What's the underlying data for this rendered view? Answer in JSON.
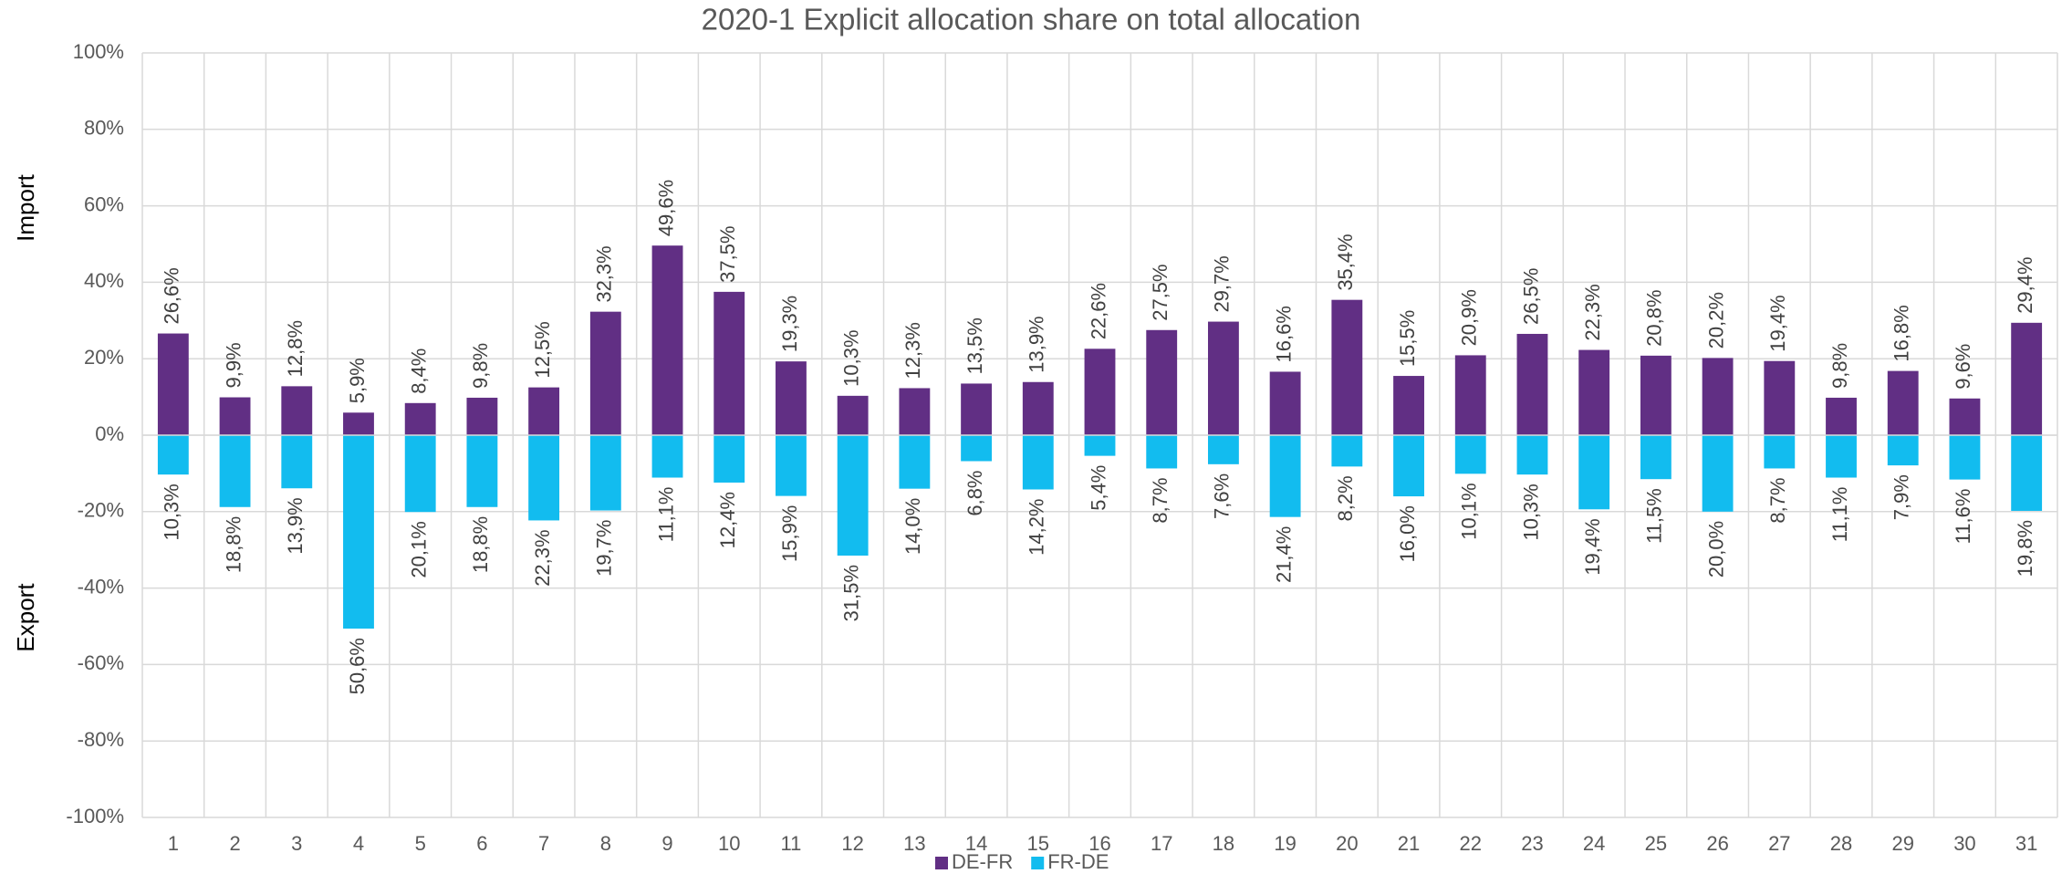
{
  "chart_data": {
    "type": "bar",
    "title": "2020-1 Explicit allocation share on total allocation",
    "ylabel_upper": "Import",
    "ylabel_lower": "Export",
    "categories": [
      "1",
      "2",
      "3",
      "4",
      "5",
      "6",
      "7",
      "8",
      "9",
      "10",
      "11",
      "12",
      "13",
      "14",
      "15",
      "16",
      "17",
      "18",
      "19",
      "20",
      "21",
      "22",
      "23",
      "24",
      "25",
      "26",
      "27",
      "28",
      "29",
      "30",
      "31"
    ],
    "series": [
      {
        "name": "DE-FR",
        "color": "#612f84",
        "values": [
          26.6,
          9.9,
          12.8,
          5.9,
          8.4,
          9.8,
          12.5,
          32.3,
          49.6,
          37.5,
          19.3,
          10.3,
          12.3,
          13.5,
          13.9,
          22.6,
          27.5,
          29.7,
          16.6,
          35.4,
          15.5,
          20.9,
          26.5,
          22.3,
          20.8,
          20.2,
          19.4,
          9.8,
          16.8,
          9.6,
          29.4
        ],
        "value_labels": [
          "26,6%",
          "9,9%",
          "12,8%",
          "5,9%",
          "8,4%",
          "9,8%",
          "12,5%",
          "32,3%",
          "49,6%",
          "37,5%",
          "19,3%",
          "10,3%",
          "12,3%",
          "13,5%",
          "13,9%",
          "22,6%",
          "27,5%",
          "29,7%",
          "16,6%",
          "35,4%",
          "15,5%",
          "20,9%",
          "26,5%",
          "22,3%",
          "20,8%",
          "20,2%",
          "19,4%",
          "9,8%",
          "16,8%",
          "9,6%",
          "29,4%"
        ]
      },
      {
        "name": "FR-DE",
        "color": "#12bcef",
        "values": [
          -10.3,
          -18.8,
          -13.9,
          -50.6,
          -20.1,
          -18.8,
          -22.3,
          -19.7,
          -11.1,
          -12.4,
          -15.9,
          -31.5,
          -14.0,
          -6.8,
          -14.2,
          -5.4,
          -8.7,
          -7.6,
          -21.4,
          -8.2,
          -16.0,
          -10.1,
          -10.3,
          -19.4,
          -11.5,
          -20.0,
          -8.7,
          -11.1,
          -7.9,
          -11.6,
          -19.8
        ],
        "value_labels": [
          "10,3%",
          "18,8%",
          "13,9%",
          "50,6%",
          "20,1%",
          "18,8%",
          "22,3%",
          "19,7%",
          "11,1%",
          "12,4%",
          "15,9%",
          "31,5%",
          "14,0%",
          "6,8%",
          "14,2%",
          "5,4%",
          "8,7%",
          "7,6%",
          "21,4%",
          "8,2%",
          "16,0%",
          "10,1%",
          "10,3%",
          "19,4%",
          "11,5%",
          "20,0%",
          "8,7%",
          "11,1%",
          "7,9%",
          "11,6%",
          "19,8%"
        ]
      }
    ],
    "ylim": [
      -100,
      100
    ],
    "yticks": [
      {
        "value": -100,
        "label": "-100%"
      },
      {
        "value": -80,
        "label": "-80%"
      },
      {
        "value": -60,
        "label": "-60%"
      },
      {
        "value": -40,
        "label": "-40%"
      },
      {
        "value": -20,
        "label": "-20%"
      },
      {
        "value": 0,
        "label": "0%"
      },
      {
        "value": 20,
        "label": "20%"
      },
      {
        "value": 40,
        "label": "40%"
      },
      {
        "value": 60,
        "label": "60%"
      },
      {
        "value": 80,
        "label": "80%"
      },
      {
        "value": 100,
        "label": "100%"
      }
    ],
    "grid": true,
    "legend": "bottom"
  }
}
